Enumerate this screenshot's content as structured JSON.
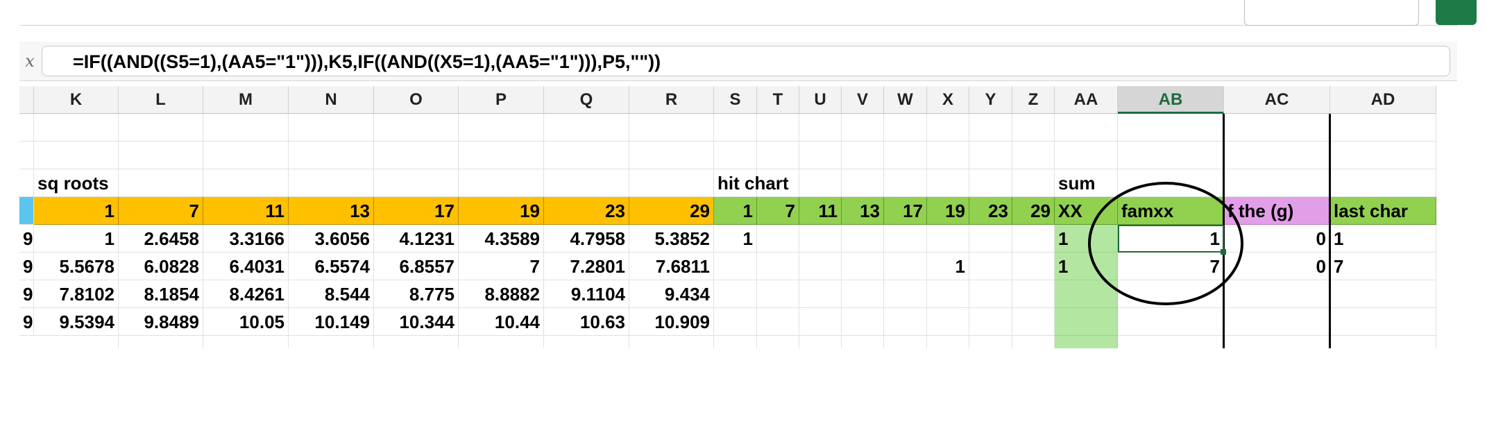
{
  "formula_bar": {
    "fx_label": "fx",
    "formula": "=IF((AND((S5=1),(AA5=\"1\"))),K5,IF((AND((X5=1),(AA5=\"1\"))),P5,\"\"))"
  },
  "columns": [
    "K",
    "L",
    "M",
    "N",
    "O",
    "P",
    "Q",
    "R",
    "S",
    "T",
    "U",
    "V",
    "W",
    "X",
    "Y",
    "Z",
    "AA",
    "AB",
    "AC",
    "AD"
  ],
  "selected_column": "AB",
  "labels": {
    "sq_roots": "sq roots",
    "hit_chart": "hit chart",
    "sum": "sum"
  },
  "header_row": {
    "sq_roots": [
      "1",
      "7",
      "11",
      "13",
      "17",
      "19",
      "23",
      "29"
    ],
    "hit_chart": [
      "1",
      "7",
      "11",
      "13",
      "17",
      "19",
      "23",
      "29"
    ],
    "aa": "XX",
    "ab": "famxx",
    "ac": "f the (g)",
    "ad": "last char"
  },
  "rows": [
    {
      "edge": "9",
      "sq": [
        "1",
        "2.6458",
        "3.3166",
        "3.6056",
        "4.1231",
        "4.3589",
        "4.7958",
        "5.3852"
      ],
      "hits": [
        "1",
        "",
        "",
        "",
        "",
        "",
        "",
        ""
      ],
      "aa": "1",
      "ab": "1",
      "ac": "0",
      "ad": "1"
    },
    {
      "edge": "9",
      "sq": [
        "5.5678",
        "6.0828",
        "6.4031",
        "6.5574",
        "6.8557",
        "7",
        "7.2801",
        "7.6811"
      ],
      "hits": [
        "",
        "",
        "",
        "",
        "",
        "1",
        "",
        ""
      ],
      "aa": "1",
      "ab": "7",
      "ac": "0",
      "ad": "7"
    },
    {
      "edge": "9",
      "sq": [
        "7.8102",
        "8.1854",
        "8.4261",
        "8.544",
        "8.775",
        "8.8882",
        "9.1104",
        "9.434"
      ],
      "hits": [
        "",
        "",
        "",
        "",
        "",
        "",
        "",
        ""
      ],
      "aa": "",
      "ab": "",
      "ac": "",
      "ad": ""
    },
    {
      "edge": "9",
      "sq": [
        "9.5394",
        "9.8489",
        "10.05",
        "10.149",
        "10.344",
        "10.44",
        "10.63",
        "10.909"
      ],
      "hits": [
        "",
        "",
        "",
        "",
        "",
        "",
        "",
        ""
      ],
      "aa": "",
      "ab": "",
      "ac": "",
      "ad": ""
    }
  ],
  "colors": {
    "orange": "#ffc000",
    "green": "#92d050",
    "light_green": "#b3e6a0",
    "pink": "#e39ee8",
    "blue": "#5bc5ee",
    "selection": "#1e6b3f"
  }
}
